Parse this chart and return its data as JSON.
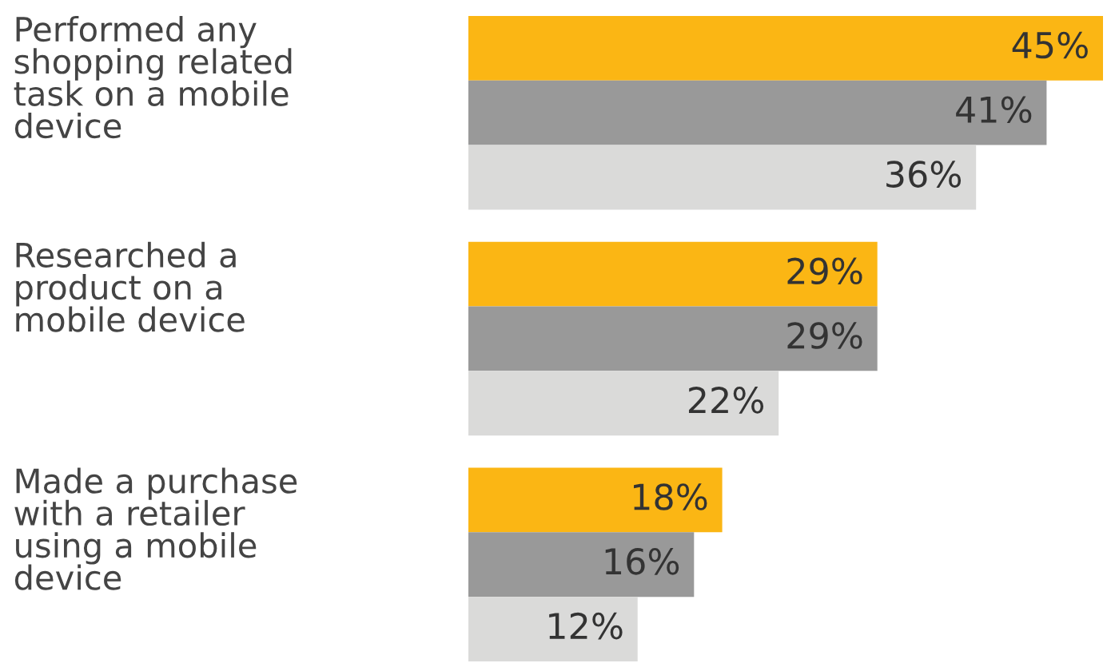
{
  "chart_data": {
    "type": "bar",
    "orientation": "horizontal",
    "categories": [
      "Performed any\nshopping related\ntask on a mobile\ndevice",
      "Researched a\nproduct on a\nmobile device",
      "Made a purchase\nwith a retailer\nusing a mobile\ndevice"
    ],
    "series": [
      {
        "color": "#fbb614",
        "values": [
          45,
          29,
          18
        ],
        "value_labels": [
          "45%",
          "29%",
          "18%"
        ]
      },
      {
        "color": "#999999",
        "values": [
          41,
          29,
          16
        ],
        "value_labels": [
          "41%",
          "29%",
          "16%"
        ]
      },
      {
        "color": "#dadad9",
        "values": [
          36,
          22,
          12
        ],
        "value_labels": [
          "36%",
          "22%",
          "12%"
        ]
      }
    ],
    "xlim": [
      0,
      45
    ],
    "tick_labels": "y",
    "grid": false,
    "legend": false
  }
}
